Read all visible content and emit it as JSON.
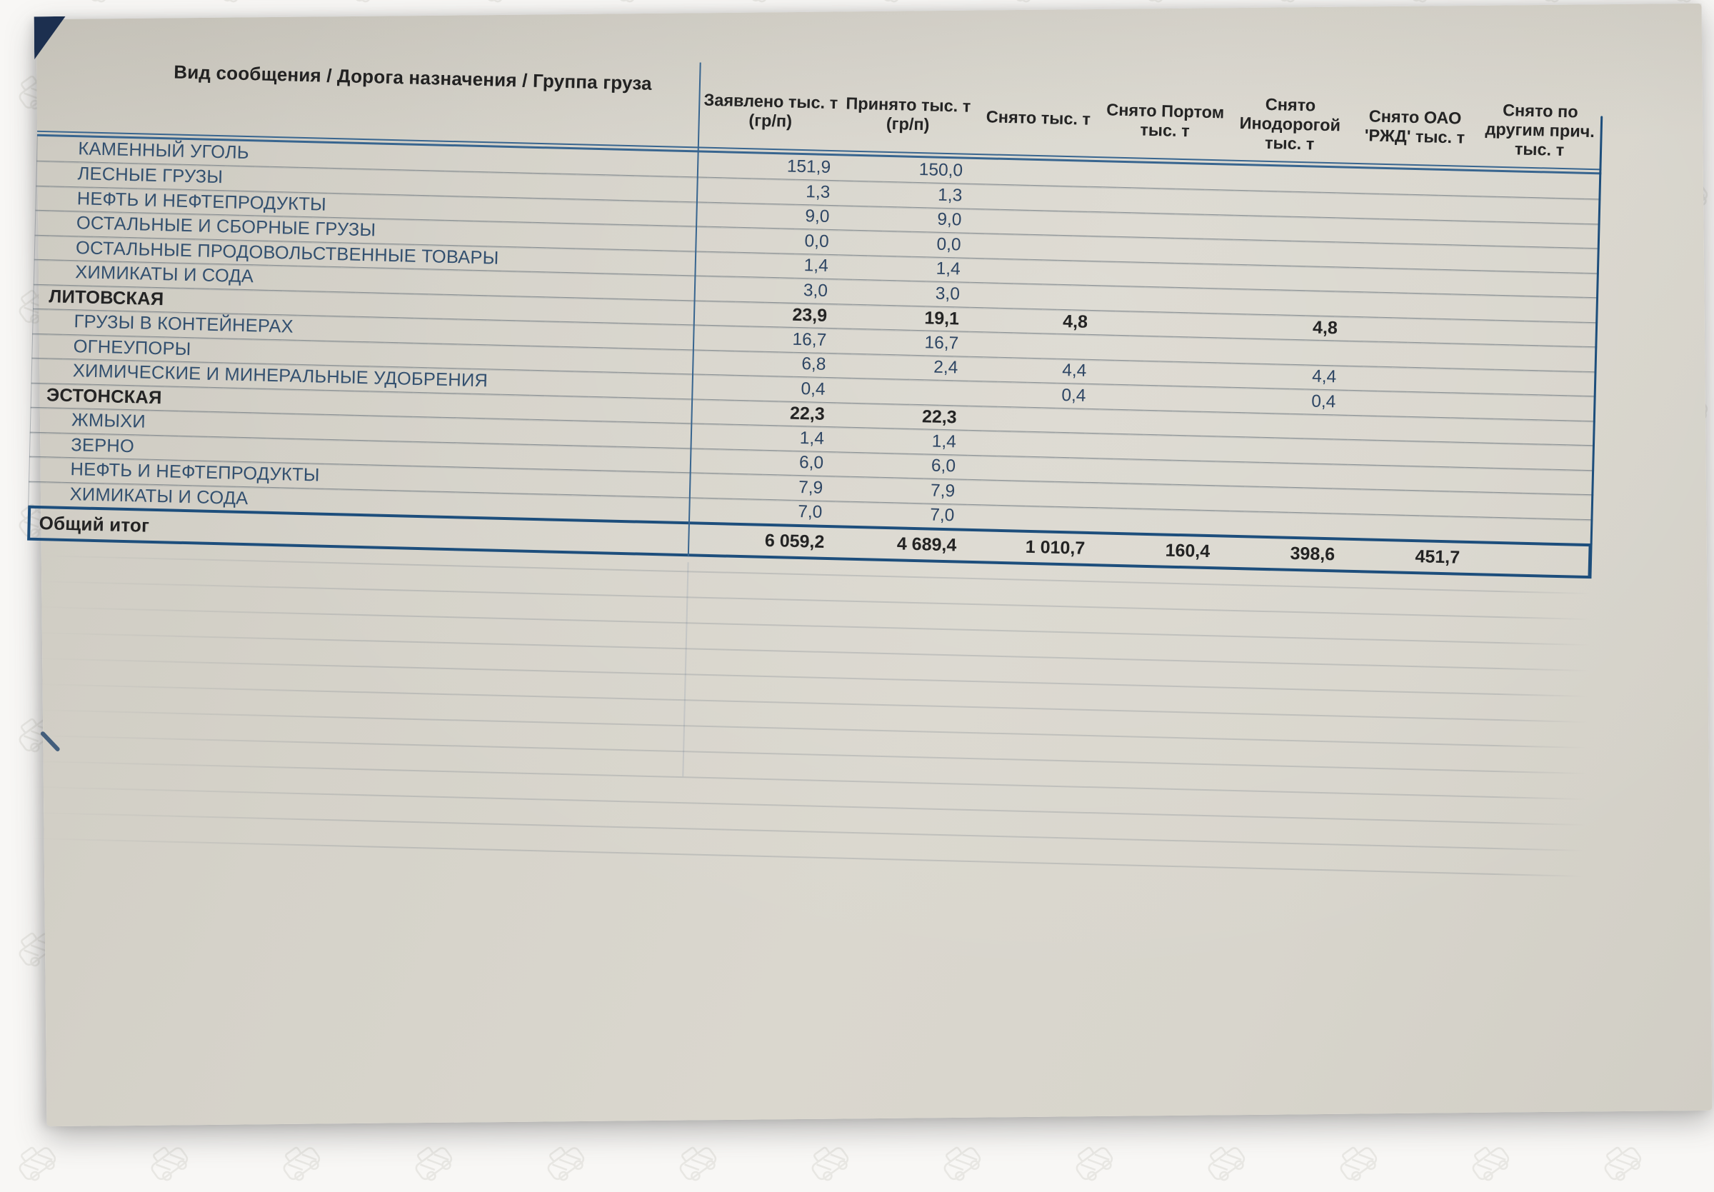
{
  "document": {
    "kind": "photographed printed pivot-table report",
    "colors": {
      "paper": "#d6d3ca",
      "backdrop": "#f8f7f5",
      "header_line_blue": "#38658f",
      "total_border_navy": "#1d4e7c",
      "row_grid_gray": "#6a737c",
      "label_navy": "#33506f",
      "text_black": "#242424",
      "corner_fold_navy": "#1c2f4f"
    }
  },
  "table": {
    "row_header_title": "Вид сообщения / Дорога назначения / Группа груза",
    "columns": [
      {
        "lines": [
          "Заявлено тыс. т",
          "(гр/п)"
        ]
      },
      {
        "lines": [
          "Принято тыс. т",
          "(гр/п)"
        ]
      },
      {
        "lines": [
          "Снято тыс. т"
        ]
      },
      {
        "lines": [
          "Снято Портом",
          "тыс. т"
        ]
      },
      {
        "lines": [
          "Снято",
          "Инодорогой",
          "тыс. т"
        ]
      },
      {
        "lines": [
          "Снято ОАО",
          "'РЖД' тыс. т"
        ]
      },
      {
        "lines": [
          "Снято по",
          "другим прич.",
          "тыс. т"
        ]
      }
    ],
    "rows": [
      {
        "label": "КАМЕННЫЙ УГОЛЬ",
        "level": "cargo",
        "values": [
          "151,9",
          "150,0",
          "",
          "",
          "",
          "",
          ""
        ]
      },
      {
        "label": "ЛЕСНЫЕ ГРУЗЫ",
        "level": "cargo",
        "values": [
          "1,3",
          "1,3",
          "",
          "",
          "",
          "",
          ""
        ]
      },
      {
        "label": "НЕФТЬ И НЕФТЕПРОДУКТЫ",
        "level": "cargo",
        "values": [
          "9,0",
          "9,0",
          "",
          "",
          "",
          "",
          ""
        ]
      },
      {
        "label": "ОСТАЛЬНЫЕ И  СБОРНЫЕ ГРУЗЫ",
        "level": "cargo",
        "values": [
          "0,0",
          "0,0",
          "",
          "",
          "",
          "",
          ""
        ]
      },
      {
        "label": "ОСТАЛЬНЫЕ ПРОДОВОЛЬСТВЕННЫЕ ТОВАРЫ",
        "level": "cargo",
        "values": [
          "1,4",
          "1,4",
          "",
          "",
          "",
          "",
          ""
        ]
      },
      {
        "label": "ХИМИКАТЫ И СОДА",
        "level": "cargo",
        "values": [
          "3,0",
          "3,0",
          "",
          "",
          "",
          "",
          ""
        ]
      },
      {
        "label": "ЛИТОВСКАЯ",
        "level": "road",
        "values": [
          "23,9",
          "19,1",
          "4,8",
          "",
          "4,8",
          "",
          ""
        ]
      },
      {
        "label": "ГРУЗЫ В КОНТЕЙНЕРАХ",
        "level": "cargo",
        "values": [
          "16,7",
          "16,7",
          "",
          "",
          "",
          "",
          ""
        ]
      },
      {
        "label": "ОГНЕУПОРЫ",
        "level": "cargo",
        "values": [
          "6,8",
          "2,4",
          "4,4",
          "",
          "4,4",
          "",
          ""
        ]
      },
      {
        "label": "ХИМИЧЕСКИЕ И МИНЕРАЛЬНЫЕ УДОБРЕНИЯ",
        "level": "cargo",
        "values": [
          "0,4",
          "",
          "0,4",
          "",
          "0,4",
          "",
          ""
        ]
      },
      {
        "label": "ЭСТОНСКАЯ",
        "level": "road",
        "values": [
          "22,3",
          "22,3",
          "",
          "",
          "",
          "",
          ""
        ]
      },
      {
        "label": "ЖМЫХИ",
        "level": "cargo",
        "values": [
          "1,4",
          "1,4",
          "",
          "",
          "",
          "",
          ""
        ]
      },
      {
        "label": "ЗЕРНО",
        "level": "cargo",
        "values": [
          "6,0",
          "6,0",
          "",
          "",
          "",
          "",
          ""
        ]
      },
      {
        "label": "НЕФТЬ И НЕФТЕПРОДУКТЫ",
        "level": "cargo",
        "values": [
          "7,9",
          "7,9",
          "",
          "",
          "",
          "",
          ""
        ]
      },
      {
        "label": "ХИМИКАТЫ И СОДА",
        "level": "cargo",
        "values": [
          "7,0",
          "7,0",
          "",
          "",
          "",
          "",
          ""
        ]
      }
    ],
    "total_row": {
      "label": "Общий итог",
      "values": [
        "6 059,2",
        "4 689,4",
        "1 010,7",
        "160,4",
        "398,6",
        "451,7",
        ""
      ]
    },
    "ghost_continuation_lines": 12
  }
}
